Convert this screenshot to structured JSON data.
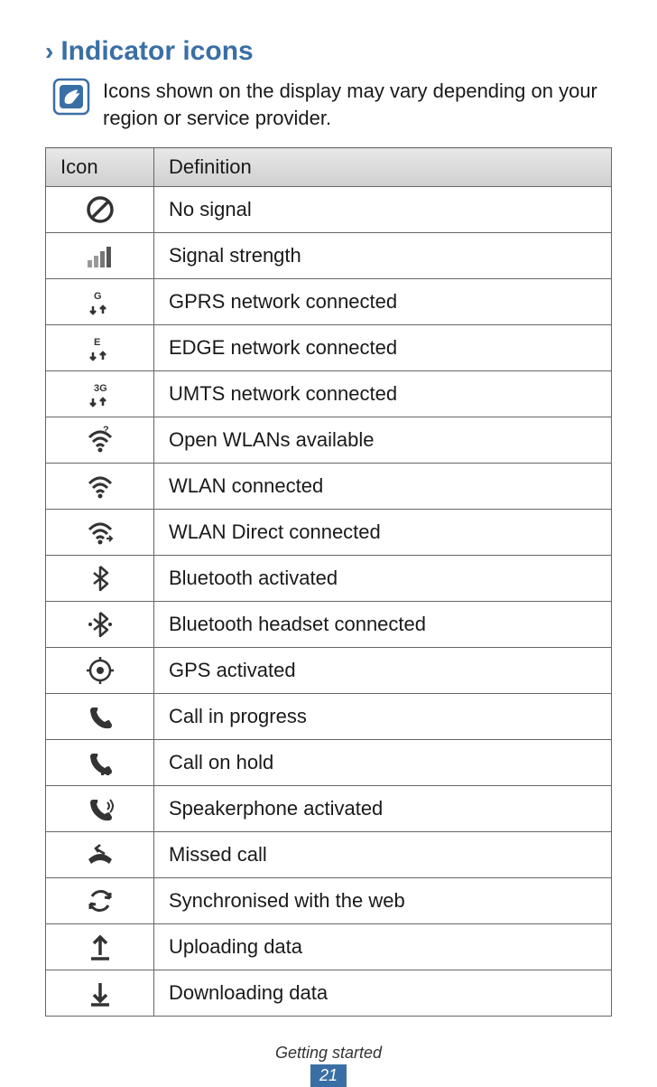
{
  "section_title": "Indicator icons",
  "note_text": "Icons shown on the display may vary depending on your region or service provider.",
  "table": {
    "header_icon": "Icon",
    "header_def": "Definition",
    "rows": [
      {
        "icon": "no-signal",
        "def": "No signal"
      },
      {
        "icon": "signal",
        "def": "Signal strength"
      },
      {
        "icon": "gprs",
        "def": "GPRS network connected",
        "label": "G"
      },
      {
        "icon": "edge",
        "def": "EDGE network connected",
        "label": "E"
      },
      {
        "icon": "umts",
        "def": "UMTS network connected",
        "label": "3G"
      },
      {
        "icon": "wlan-open",
        "def": "Open WLANs available"
      },
      {
        "icon": "wlan",
        "def": "WLAN connected"
      },
      {
        "icon": "wlan-direct",
        "def": "WLAN Direct connected"
      },
      {
        "icon": "bluetooth",
        "def": "Bluetooth activated"
      },
      {
        "icon": "bt-headset",
        "def": "Bluetooth headset connected"
      },
      {
        "icon": "gps",
        "def": "GPS activated"
      },
      {
        "icon": "call",
        "def": "Call in progress"
      },
      {
        "icon": "hold",
        "def": "Call on hold"
      },
      {
        "icon": "speaker",
        "def": "Speakerphone activated"
      },
      {
        "icon": "missed",
        "def": "Missed call"
      },
      {
        "icon": "sync",
        "def": "Synchronised with the web"
      },
      {
        "icon": "upload",
        "def": "Uploading data"
      },
      {
        "icon": "download",
        "def": "Downloading data"
      }
    ]
  },
  "footer_text": "Getting started",
  "page_number": "21",
  "colors": {
    "accent": "#3a6fa5",
    "border": "#666666",
    "header_bg_top": "#e8e8e8",
    "header_bg_bottom": "#cfcfcf"
  }
}
